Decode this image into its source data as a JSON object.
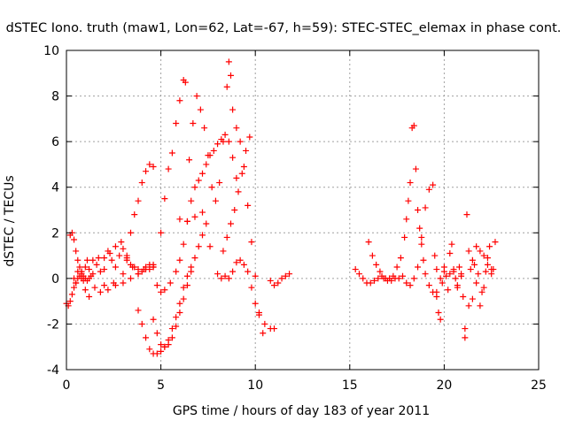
{
  "chart_data": {
    "type": "scatter",
    "title": "dSTEC Iono. truth (maw1, Lon=62, Lat=-67, h=59): STEC-STEC_elemax in phase cont.",
    "xlabel": "GPS time / hours of day 183 of year 2011",
    "ylabel": "dSTEC  / TECUs",
    "xlim": [
      0,
      25
    ],
    "ylim": [
      -4,
      10
    ],
    "xticks": [
      0,
      5,
      10,
      15,
      20,
      25
    ],
    "yticks": [
      -4,
      -2,
      0,
      2,
      4,
      6,
      8,
      10
    ],
    "grid": true,
    "marker": "+",
    "color": "#ff0000",
    "series": [
      {
        "x": [
          0.0,
          0.1,
          0.2,
          0.3,
          0.4,
          0.5,
          0.6,
          0.7,
          0.8,
          0.9
        ],
        "y": [
          -1.1,
          -1.2,
          -1.0,
          -0.7,
          -0.4,
          -0.2,
          0.0,
          0.1,
          0.0,
          -0.1
        ]
      },
      {
        "x": [
          0.2,
          0.3,
          0.4,
          0.5,
          0.6,
          0.7,
          0.8,
          0.9,
          1.0,
          1.1,
          1.2,
          1.3
        ],
        "y": [
          1.9,
          2.0,
          1.7,
          1.2,
          0.8,
          0.5,
          0.3,
          0.1,
          0.0,
          -0.1,
          0.0,
          0.1
        ]
      },
      {
        "x": [
          0.4,
          0.6,
          0.8,
          1.0,
          1.2,
          1.4,
          1.6,
          1.8,
          2.0,
          2.2,
          2.4,
          2.6,
          2.8,
          3.0,
          3.2,
          3.4,
          3.6,
          3.8,
          4.0,
          4.2,
          4.4,
          4.6
        ],
        "y": [
          0.0,
          0.3,
          0.2,
          0.5,
          0.4,
          0.8,
          0.6,
          0.3,
          0.9,
          1.2,
          0.8,
          1.4,
          1.0,
          1.3,
          0.9,
          0.6,
          0.5,
          0.4,
          0.3,
          0.5,
          0.4,
          0.5
        ]
      },
      {
        "x": [
          0.5,
          0.8,
          1.1,
          1.4,
          1.7,
          2.0,
          2.3,
          2.6,
          2.9,
          3.2,
          3.5,
          3.8,
          4.1,
          4.4,
          4.6
        ],
        "y": [
          -0.2,
          0.3,
          0.8,
          0.2,
          0.9,
          0.4,
          1.1,
          0.5,
          1.6,
          0.8,
          0.5,
          0.2,
          0.4,
          0.6,
          0.5
        ]
      },
      {
        "x": [
          1.0,
          1.5,
          2.0,
          2.5,
          3.0,
          3.2,
          3.4,
          3.6,
          3.8,
          4.0,
          4.2,
          4.4,
          4.6
        ],
        "y": [
          -0.5,
          -0.4,
          -0.3,
          -0.2,
          0.2,
          1.0,
          2.0,
          2.8,
          3.4,
          4.2,
          4.7,
          5.0,
          4.9
        ]
      },
      {
        "x": [
          1.2,
          1.8,
          2.2,
          2.6,
          3.0,
          3.4,
          3.8,
          4.2,
          4.6,
          5.0,
          5.2,
          5.4,
          5.6,
          5.8,
          6.0,
          6.2,
          6.3
        ],
        "y": [
          -0.8,
          -0.6,
          -0.5,
          -0.3,
          -0.2,
          0.0,
          0.2,
          0.4,
          0.6,
          2.0,
          3.5,
          4.8,
          5.5,
          6.8,
          7.8,
          8.7,
          8.6
        ]
      },
      {
        "x": [
          3.8,
          4.0,
          4.2,
          4.4,
          4.6,
          4.8,
          5.0,
          5.2,
          5.4,
          5.6,
          5.8,
          6.0,
          6.2,
          6.4,
          6.6
        ],
        "y": [
          -1.4,
          -2.0,
          -2.6,
          -3.1,
          -3.3,
          -3.3,
          -3.2,
          -3.0,
          -2.7,
          -2.2,
          -1.7,
          -1.1,
          -0.4,
          0.1,
          0.5
        ]
      },
      {
        "x": [
          4.6,
          4.8,
          5.0,
          5.2,
          5.4,
          5.6,
          5.8,
          6.0,
          6.2,
          6.4,
          6.6,
          6.8,
          7.0,
          7.2,
          7.4
        ],
        "y": [
          -1.8,
          -2.4,
          -2.9,
          -3.0,
          -2.9,
          -2.6,
          -2.1,
          -1.5,
          -0.9,
          -0.3,
          0.3,
          0.9,
          1.4,
          1.9,
          2.4
        ]
      },
      {
        "x": [
          4.8,
          5.0,
          5.2,
          5.5,
          5.8,
          6.0,
          6.2,
          6.4,
          6.6,
          6.8,
          7.0,
          7.2,
          7.4,
          7.6,
          7.8,
          8.0,
          8.2,
          8.4,
          8.6,
          8.8,
          9.0
        ],
        "y": [
          -0.3,
          -0.6,
          -0.5,
          -0.2,
          0.3,
          0.8,
          1.5,
          2.5,
          3.4,
          4.0,
          4.3,
          4.6,
          5.0,
          5.4,
          5.6,
          5.9,
          6.1,
          6.3,
          6.0,
          5.3,
          4.4
        ]
      },
      {
        "x": [
          6.5,
          6.7,
          6.9,
          7.1,
          7.3,
          7.5,
          7.7,
          7.9,
          8.1,
          8.3,
          8.5,
          8.6,
          8.7,
          8.8,
          9.0,
          9.2,
          9.4,
          9.6,
          9.8,
          10.0,
          10.2,
          10.4
        ],
        "y": [
          5.2,
          6.8,
          8.0,
          7.4,
          6.6,
          5.4,
          4.0,
          3.4,
          4.2,
          6.0,
          8.4,
          9.5,
          8.9,
          7.4,
          6.6,
          6.0,
          4.9,
          3.2,
          1.6,
          0.1,
          -1.6,
          -2.4
        ]
      },
      {
        "x": [
          6.0,
          6.4,
          6.8,
          7.2,
          7.6,
          8.0,
          8.2,
          8.4,
          8.6,
          8.8,
          9.0,
          9.2,
          9.4,
          9.6,
          9.8,
          10.0,
          10.2,
          10.5,
          10.8,
          11.0
        ],
        "y": [
          2.6,
          2.5,
          2.7,
          2.9,
          1.4,
          0.2,
          0.0,
          0.1,
          0.0,
          0.3,
          0.7,
          0.8,
          0.6,
          0.3,
          -0.4,
          -1.1,
          -1.5,
          -2.0,
          -2.2,
          -2.2
        ]
      },
      {
        "x": [
          8.3,
          8.5,
          8.7,
          8.9,
          9.1,
          9.3,
          9.5,
          9.7
        ],
        "y": [
          1.2,
          1.8,
          2.4,
          3.0,
          3.8,
          4.6,
          5.6,
          6.2
        ]
      },
      {
        "x": [
          10.8,
          11.0,
          11.2,
          11.4,
          11.6,
          11.8
        ],
        "y": [
          -0.1,
          -0.3,
          -0.2,
          0.0,
          0.1,
          0.2
        ]
      },
      {
        "x": [
          15.3,
          15.5,
          15.7,
          15.9,
          16.1,
          16.3,
          16.5,
          16.7,
          16.9,
          17.1,
          17.3,
          17.5,
          17.7,
          17.9,
          18.0,
          18.1,
          18.2,
          18.3,
          18.4,
          18.5,
          18.6,
          18.7,
          18.8,
          18.9,
          19.0,
          19.2,
          19.4,
          19.6
        ],
        "y": [
          0.4,
          0.2,
          0.0,
          -0.2,
          -0.2,
          -0.1,
          0.0,
          0.1,
          0.0,
          0.0,
          0.1,
          0.5,
          0.9,
          1.8,
          2.6,
          3.4,
          4.2,
          6.6,
          6.7,
          4.8,
          3.0,
          2.2,
          1.5,
          0.8,
          0.2,
          -0.3,
          -0.6,
          -0.8
        ]
      },
      {
        "x": [
          16.0,
          16.2,
          16.4,
          16.6,
          16.8,
          17.0,
          17.2,
          17.4,
          17.6,
          17.8,
          18.0,
          18.2,
          18.4,
          18.6,
          18.8,
          19.0,
          19.2,
          19.4,
          19.6,
          19.8,
          20.0
        ],
        "y": [
          1.6,
          1.0,
          0.6,
          0.3,
          0.0,
          -0.1,
          -0.1,
          0.0,
          0.0,
          0.1,
          -0.2,
          -0.3,
          0.0,
          0.5,
          1.8,
          3.1,
          3.9,
          4.1,
          0.4,
          0.0,
          0.3
        ]
      },
      {
        "x": [
          19.5,
          19.6,
          19.7,
          19.8,
          19.9,
          20.0,
          20.1,
          20.2,
          20.3,
          20.4,
          20.5,
          20.6,
          20.7,
          20.8,
          20.9,
          21.0,
          21.1,
          21.2,
          21.3,
          21.4,
          21.5,
          21.6,
          21.7,
          21.8,
          21.9,
          22.0,
          22.1,
          22.2,
          22.3,
          22.4,
          22.5,
          22.6,
          22.7
        ],
        "y": [
          1.0,
          -0.6,
          -1.5,
          -1.8,
          -0.2,
          0.5,
          0.1,
          -0.5,
          0.2,
          1.5,
          0.3,
          0.0,
          -0.4,
          0.5,
          0.2,
          -0.8,
          -2.6,
          2.8,
          1.2,
          0.4,
          -0.9,
          0.6,
          1.4,
          0.2,
          -1.2,
          -0.6,
          1.0,
          0.3,
          0.9,
          1.4,
          0.2,
          0.4,
          1.6
        ]
      },
      {
        "x": [
          20.3,
          20.5,
          20.7,
          20.9,
          21.1,
          21.3,
          21.5,
          21.7,
          21.9,
          22.1,
          22.3,
          22.5
        ],
        "y": [
          1.1,
          0.4,
          -0.3,
          0.1,
          -2.2,
          -1.2,
          0.8,
          -0.2,
          1.2,
          -0.4,
          0.6,
          0.4
        ]
      }
    ]
  }
}
